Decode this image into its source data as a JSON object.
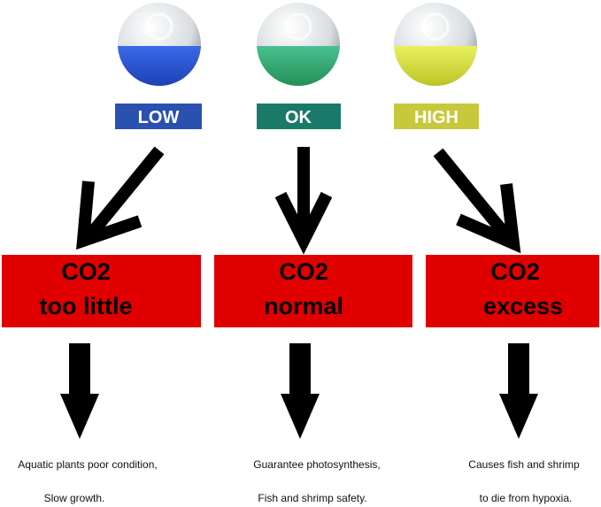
{
  "columns": [
    {
      "indicator": "LOW",
      "status": [
        "CO2",
        "too little"
      ],
      "effect": [
        "Aquatic plants poor condition,",
        "Slow growth."
      ]
    },
    {
      "indicator": "OK",
      "status": [
        "CO2",
        "normal"
      ],
      "effect": [
        "Guarantee photosynthesis,",
        "Fish and shrimp safety."
      ]
    },
    {
      "indicator": "HIGH",
      "status": [
        "CO2",
        "excess"
      ],
      "effect": [
        "Causes fish and shrimp",
        "to die from hypoxia."
      ]
    }
  ]
}
